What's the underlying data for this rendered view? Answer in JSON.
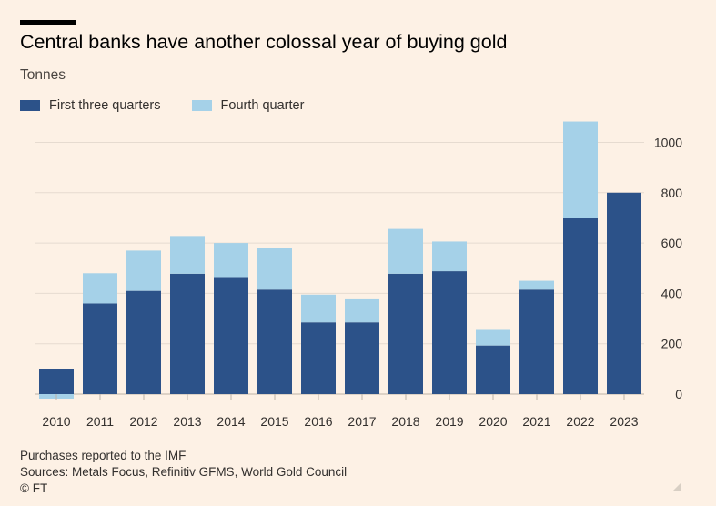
{
  "header": {
    "title": "Central banks have another colossal year of buying gold",
    "subtitle": "Tonnes"
  },
  "legend": {
    "items": [
      {
        "label": "First three quarters",
        "color": "#2c5289"
      },
      {
        "label": "Fourth quarter",
        "color": "#a5d1e8"
      }
    ]
  },
  "footer": {
    "note": "Purchases reported to the IMF",
    "sources": "Sources: Metals Focus, Refinitiv GFMS, World Gold Council",
    "credit": "© FT"
  },
  "chart_data": {
    "type": "bar",
    "stacked": true,
    "categories": [
      "2010",
      "2011",
      "2012",
      "2013",
      "2014",
      "2015",
      "2016",
      "2017",
      "2018",
      "2019",
      "2020",
      "2021",
      "2022",
      "2023"
    ],
    "series": [
      {
        "name": "First three quarters",
        "color": "#2c5289",
        "values": [
          100,
          360,
          410,
          478,
          465,
          415,
          285,
          285,
          478,
          488,
          193,
          415,
          700,
          800
        ]
      },
      {
        "name": "Fourth quarter",
        "color": "#a5d1e8",
        "values": [
          -18,
          120,
          160,
          150,
          135,
          165,
          110,
          95,
          178,
          118,
          62,
          35,
          383,
          0
        ]
      }
    ],
    "yticks": [
      0,
      200,
      400,
      600,
      800,
      1000
    ],
    "ylim": [
      -20,
      1100
    ],
    "y_axis_position": "right",
    "grid": true,
    "legend_position": "top-left"
  }
}
